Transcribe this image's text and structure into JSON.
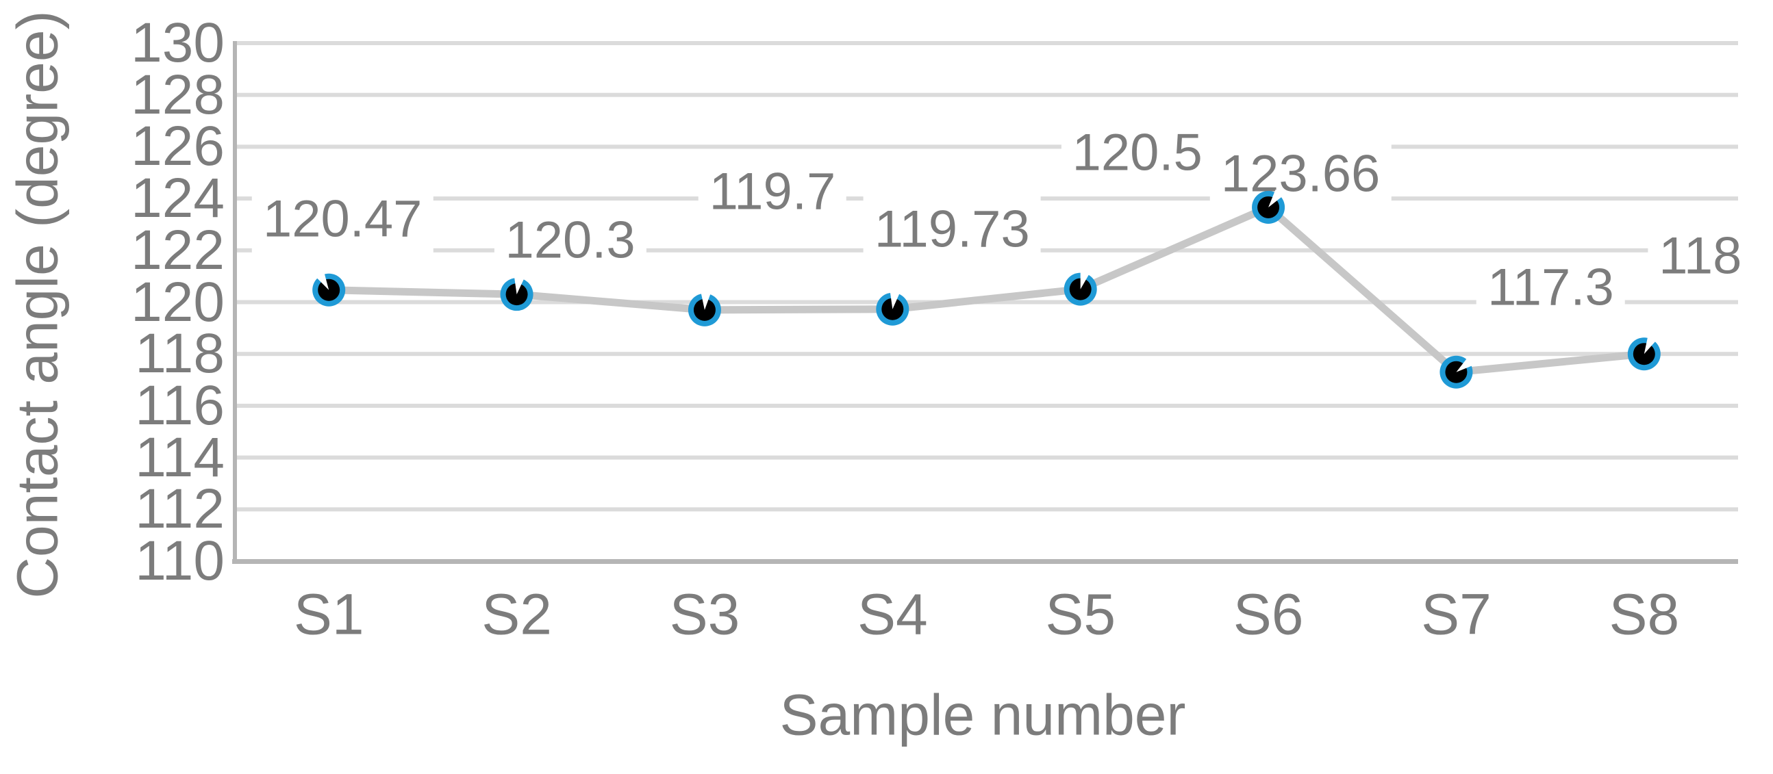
{
  "chart_data": {
    "type": "line",
    "title": "",
    "categories": [
      "S1",
      "S2",
      "S3",
      "S4",
      "S5",
      "S6",
      "S7",
      "S8"
    ],
    "series": [
      {
        "name": "Contact angle",
        "values": [
          120.47,
          120.3,
          119.7,
          119.73,
          120.5,
          123.66,
          117.3,
          118
        ],
        "data_labels": [
          "120.47",
          "120.3",
          "119.7",
          "119.73",
          "120.5",
          "123.66",
          "117.3",
          "118"
        ]
      }
    ],
    "xlabel": "Sample number",
    "ylabel": "Contact angle (degree)",
    "ylim": [
      110,
      130
    ],
    "ytick_step": 2,
    "yticks": [
      130,
      128,
      126,
      124,
      122,
      120,
      118,
      116,
      114,
      112,
      110
    ],
    "grid": true,
    "legend_position": "none",
    "colors": {
      "series_line": "#c7c7c7",
      "marker_core": "#000000",
      "marker_ring": "#1f9ad6",
      "marker_notch": "#ffffff",
      "gridline": "#dbdbdb",
      "axis_line": "#b5b5b5",
      "text": "#7c7c7c"
    }
  }
}
